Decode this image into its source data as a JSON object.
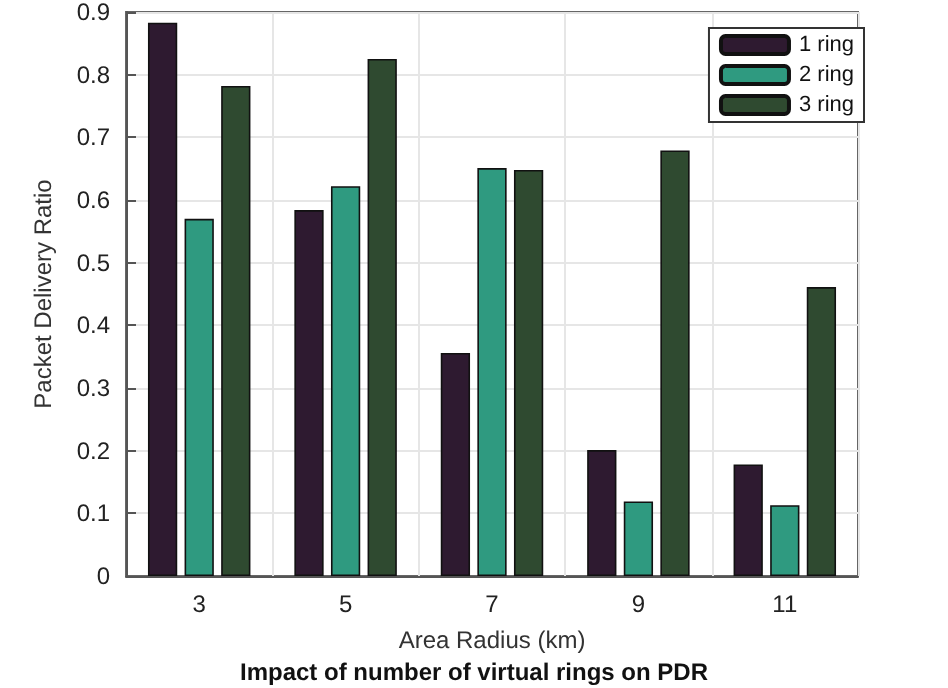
{
  "chart_data": {
    "type": "bar",
    "xlabel": "Area Radius (km)",
    "ylabel": "Packet Delivery Ratio",
    "categories": [
      "3",
      "5",
      "7",
      "9",
      "11"
    ],
    "series": [
      {
        "name": "1 ring",
        "color": "#2e1a30",
        "values": [
          0.883,
          0.584,
          0.356,
          0.201,
          0.178
        ]
      },
      {
        "name": "2 ring",
        "color": "#2f9a80",
        "values": [
          0.57,
          0.622,
          0.651,
          0.119,
          0.113
        ]
      },
      {
        "name": "3 ring",
        "color": "#2f4a30",
        "values": [
          0.782,
          0.825,
          0.648,
          0.679,
          0.461
        ]
      }
    ],
    "ylim": [
      0,
      0.9
    ],
    "yticks": [
      0,
      0.1,
      0.2,
      0.3,
      0.4,
      0.5,
      0.6,
      0.7,
      0.8,
      0.9
    ],
    "grid": true,
    "legend": "top right",
    "annotations": [
      "Impact of number of virtual rings on PDR"
    ]
  }
}
